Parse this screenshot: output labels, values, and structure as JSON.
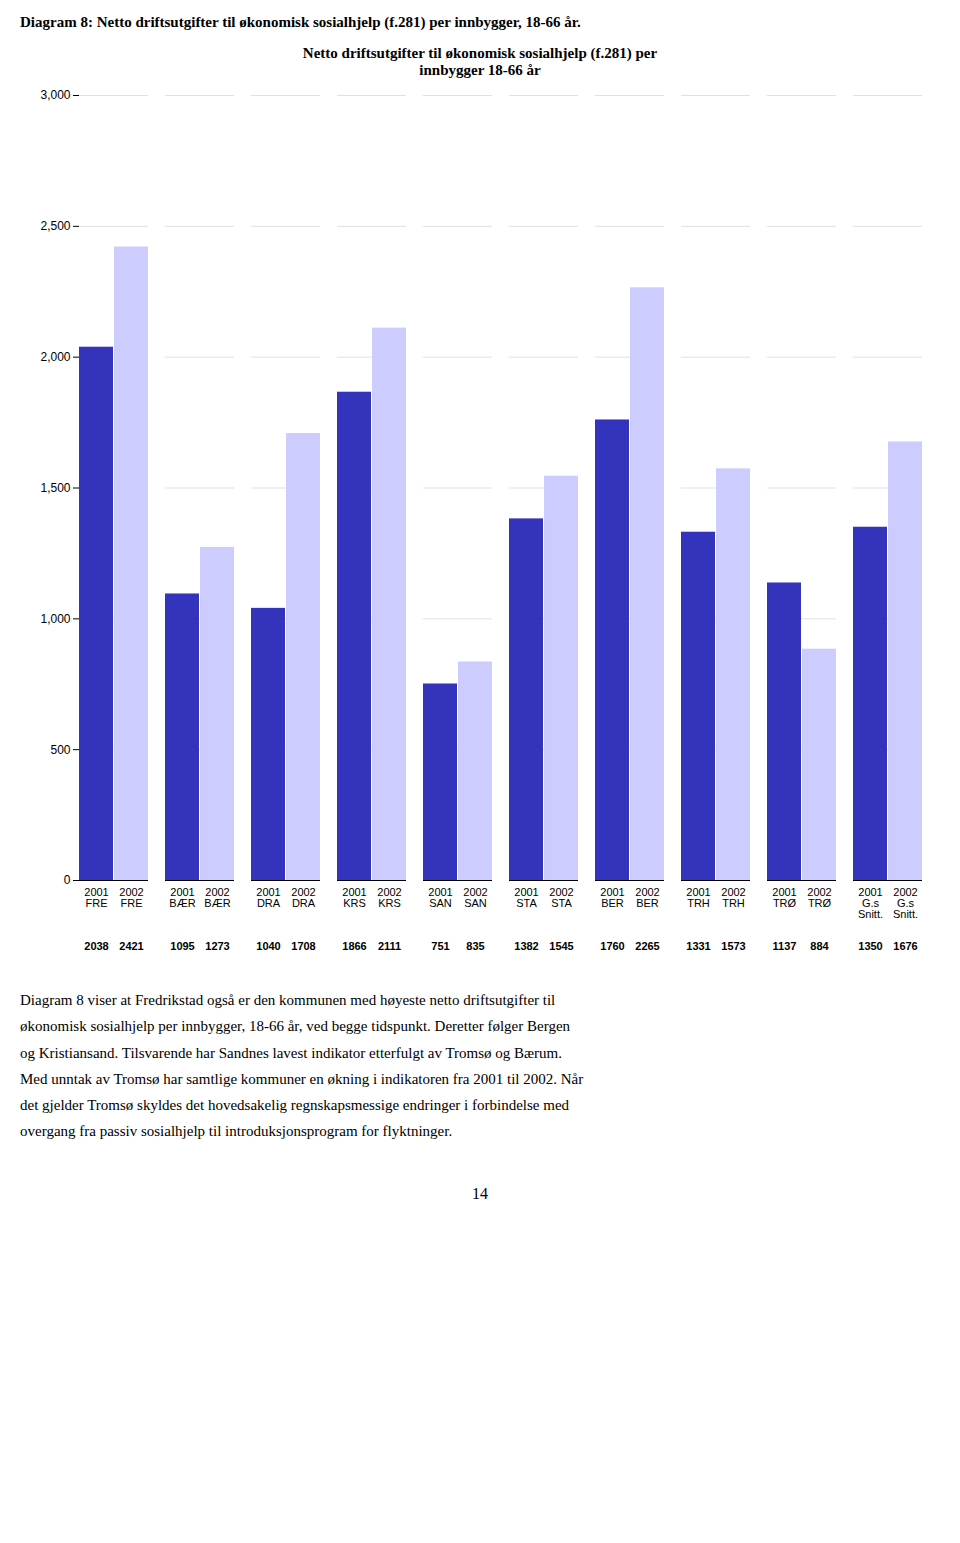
{
  "title": "Diagram 8: Netto driftsutgifter til økonomisk sosialhjelp (f.281) per innbygger, 18-66 år.",
  "paragraphs": [
    "Diagram 8 viser at Fredrikstad også er den kommunen med høyeste netto driftsutgifter til",
    "økonomisk sosialhjelp per innbygger, 18-66 år, ved begge tidspunkt. Deretter følger Bergen",
    "og Kristiansand. Tilsvarende har Sandnes lavest indikator etterfulgt av Tromsø og Bærum.",
    "Med unntak av Tromsø har samtlige kommuner en økning i indikatoren fra 2001 til 2002. Når",
    "det gjelder Tromsø skyldes det hovedsakelig regnskapsmessige endringer i forbindelse med",
    "overgang fra passiv sosialhjelp til introduksjonsprogram for flyktninger."
  ],
  "page_number": "14",
  "chart_data": {
    "type": "bar",
    "title": "Netto driftsutgifter til økonomisk sosialhjelp (f.281) per\ninnbygger 18-66 år",
    "categories": [
      "FRE",
      "BÆR",
      "DRA",
      "KRS",
      "SAN",
      "STA",
      "BER",
      "TRH",
      "TRØ",
      "G.s\nSnitt."
    ],
    "series": [
      {
        "name": "2001",
        "color": "#3333bb",
        "values": [
          2038,
          1095,
          1040,
          1866,
          751,
          1382,
          1760,
          1331,
          1137,
          1350
        ]
      },
      {
        "name": "2002",
        "color": "#ccccff",
        "values": [
          2421,
          1273,
          1708,
          2111,
          835,
          1545,
          2265,
          1573,
          884,
          1676
        ]
      }
    ],
    "ylim": [
      0,
      3000
    ],
    "yticks": [
      0,
      500,
      1000,
      1500,
      2000,
      2500,
      3000
    ],
    "grid": true,
    "data_labels": true
  }
}
